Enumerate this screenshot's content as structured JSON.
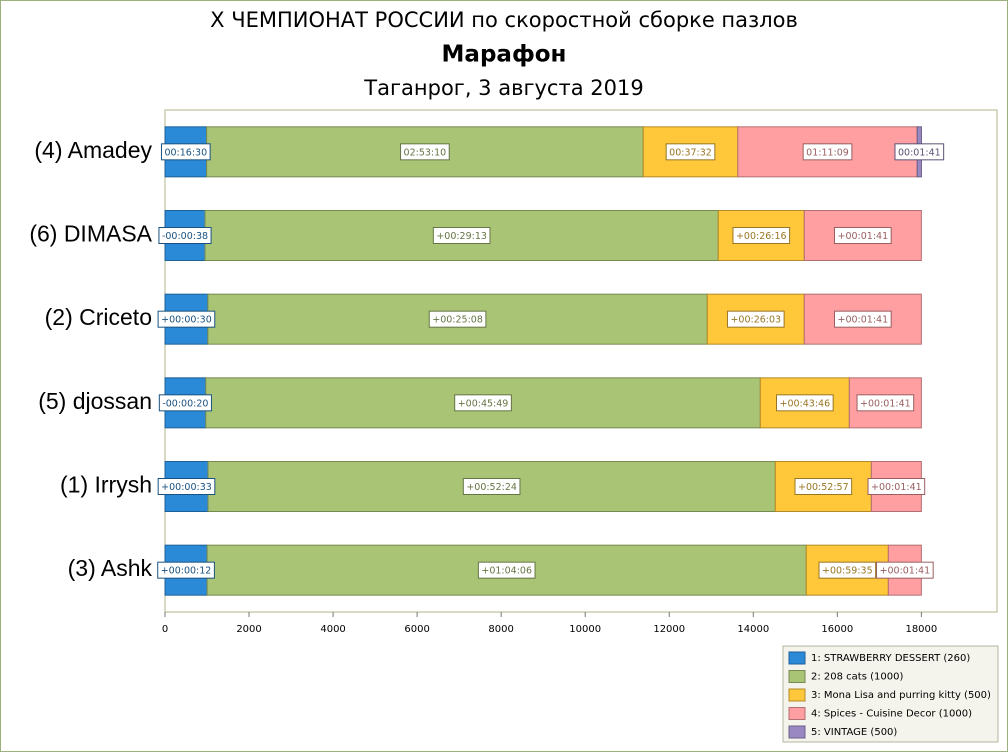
{
  "chart_data": {
    "type": "stacked-barh",
    "title": "X ЧЕМПИОНАТ РОССИИ по скоростной сборке пазлов",
    "subtitle": "Марафон",
    "caption": "Таганрог, 3 августа 2019",
    "categories": [
      "(4) Amadey",
      "(6) DIMASA",
      "(2) Criceto",
      "(5) djossan",
      "(1) Irrysh",
      "(3) Ashk"
    ],
    "series": [
      {
        "name": "1: STRAWBERRY DESSERT (260)",
        "color": "#2a8ad8",
        "values": [
          990,
          952,
          1020,
          970,
          1023,
          1002
        ],
        "value_labels": [
          "00:16:30",
          "-00:00:38",
          "+00:00:30",
          "-00:00:20",
          "+00:00:33",
          "+00:00:12"
        ]
      },
      {
        "name": "2: 208 cats (1000)",
        "color": "#a9c474",
        "values": [
          10390,
          12215,
          11885,
          13197,
          13501,
          14260
        ],
        "value_labels": [
          "02:53:10",
          "+00:29:13",
          "+00:25:08",
          "+00:45:49",
          "+00:52:24",
          "+01:04:06"
        ]
      },
      {
        "name": "3: Mona Lisa and purring kitty (500)",
        "color": "#ffc73a",
        "values": [
          2252,
          2047,
          2309,
          2119,
          2286,
          1952
        ],
        "value_labels": [
          "00:37:32",
          "+00:26:16",
          "+00:26:03",
          "+00:43:46",
          "+00:52:57",
          "+00:59:35"
        ]
      },
      {
        "name": "4: Spices - Cuisine Decor (1000)",
        "color": "#ff9fa2",
        "values": [
          4269,
          2786,
          2786,
          1714,
          1190,
          786
        ],
        "value_labels": [
          "01:11:09",
          "+00:01:41",
          "+00:01:41",
          "+00:01:41",
          "+00:01:41",
          "+00:01:41"
        ]
      },
      {
        "name": "5: VINTAGE (500)",
        "color": "#9a88c2",
        "values": [
          101,
          null,
          null,
          null,
          null,
          null
        ],
        "value_labels": [
          "00:01:41",
          null,
          null,
          null,
          null,
          null
        ]
      }
    ],
    "xlim": [
      0,
      19800
    ],
    "xticks": [
      0,
      2000,
      4000,
      6000,
      8000,
      10000,
      12000,
      14000,
      16000,
      18000
    ]
  }
}
